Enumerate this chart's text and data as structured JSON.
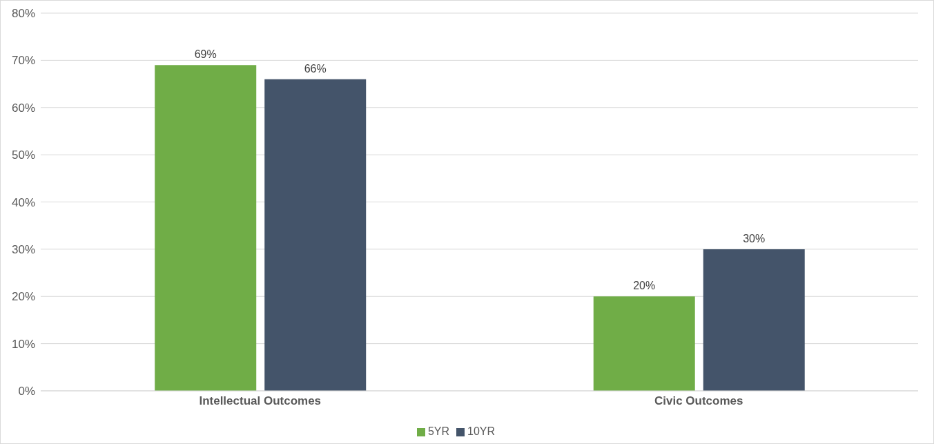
{
  "chart_data": {
    "type": "bar",
    "categories": [
      "Intellectual Outcomes",
      "Civic Outcomes"
    ],
    "series": [
      {
        "name": "5YR",
        "color": "#70ad47",
        "values": [
          69,
          20
        ],
        "value_labels": [
          "69%",
          "20%"
        ]
      },
      {
        "name": "10YR",
        "color": "#44546a",
        "values": [
          66,
          30
        ],
        "value_labels": [
          "66%",
          "30%"
        ]
      }
    ],
    "ylim": [
      0,
      80
    ],
    "yticks": [
      {
        "value": 0,
        "label": "0%"
      },
      {
        "value": 10,
        "label": "10%"
      },
      {
        "value": 20,
        "label": "20%"
      },
      {
        "value": 30,
        "label": "30%"
      },
      {
        "value": 40,
        "label": "40%"
      },
      {
        "value": 50,
        "label": "50%"
      },
      {
        "value": 60,
        "label": "60%"
      },
      {
        "value": 70,
        "label": "70%"
      },
      {
        "value": 80,
        "label": "80%"
      }
    ],
    "grid": "y",
    "legend": "bottom"
  }
}
